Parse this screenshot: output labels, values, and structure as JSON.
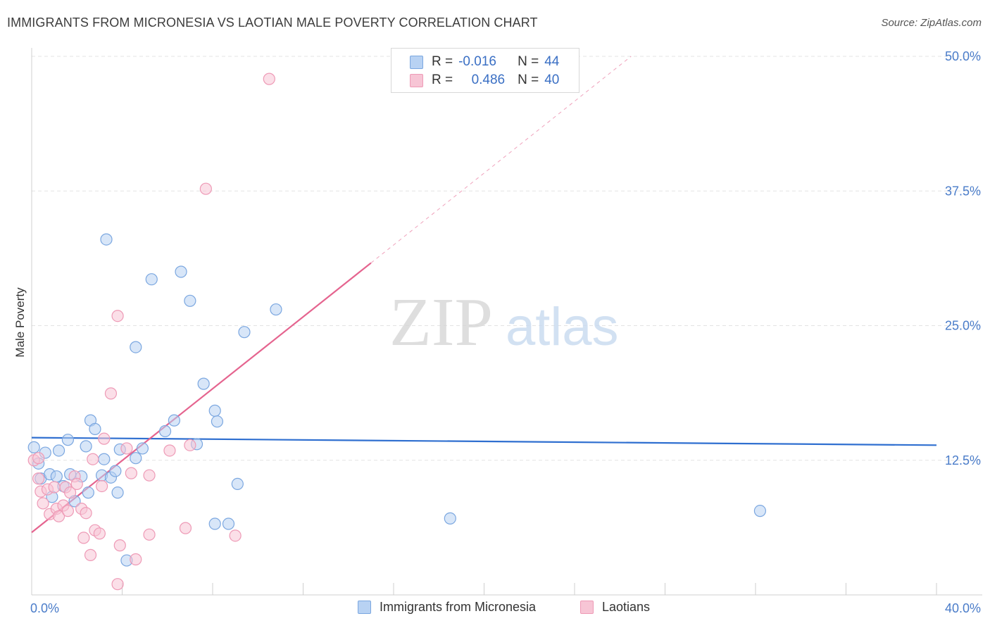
{
  "title": "IMMIGRANTS FROM MICRONESIA VS LAOTIAN MALE POVERTY CORRELATION CHART",
  "source": "Source: ZipAtlas.com",
  "watermark": {
    "zip": "ZIP",
    "atlas": "atlas"
  },
  "legend": {
    "rows": [
      {
        "r_label": "R =",
        "r_value": "-0.016",
        "n_label": "N =",
        "n_value": "44"
      },
      {
        "r_label": "R =",
        "r_value": "0.486",
        "n_label": "N =",
        "n_value": "40"
      }
    ]
  },
  "colors": {
    "blue_fill": "#b8d2f3",
    "blue_stroke": "#7ba7e0",
    "blue_line": "#2f6fd0",
    "pink_fill": "#f7c5d5",
    "pink_stroke": "#ee9ab6",
    "pink_line": "#e5648f",
    "tick_text": "#4a7cc9",
    "grid": "#e3e3e3"
  },
  "chart_data": {
    "type": "scatter",
    "title": "IMMIGRANTS FROM MICRONESIA VS LAOTIAN MALE POVERTY CORRELATION CHART",
    "xlabel": "",
    "ylabel": "Male Poverty",
    "xlim": [
      0,
      40
    ],
    "ylim": [
      0,
      50
    ],
    "x_tick_labels": [
      "0.0%",
      "40.0%"
    ],
    "y_tick_values": [
      12.5,
      25.0,
      37.5,
      50.0
    ],
    "y_tick_labels": [
      "12.5%",
      "25.0%",
      "37.5%",
      "50.0%"
    ],
    "series": [
      {
        "name": "Immigrants from Micronesia",
        "color": "blue",
        "trend": {
          "x0": 0,
          "y0": 14.6,
          "x1": 40,
          "y1": 13.9,
          "solid_to": 40
        },
        "points": [
          [
            0.1,
            13.7
          ],
          [
            0.3,
            12.2
          ],
          [
            0.4,
            10.8
          ],
          [
            0.6,
            13.2
          ],
          [
            0.8,
            11.2
          ],
          [
            0.9,
            9.1
          ],
          [
            1.1,
            11.0
          ],
          [
            1.2,
            13.4
          ],
          [
            1.4,
            10.1
          ],
          [
            1.6,
            14.4
          ],
          [
            1.7,
            11.2
          ],
          [
            1.9,
            8.7
          ],
          [
            2.2,
            11.0
          ],
          [
            2.4,
            13.8
          ],
          [
            2.5,
            9.5
          ],
          [
            2.6,
            16.2
          ],
          [
            2.8,
            15.4
          ],
          [
            3.1,
            11.1
          ],
          [
            3.2,
            12.6
          ],
          [
            3.5,
            10.9
          ],
          [
            3.7,
            11.5
          ],
          [
            3.8,
            9.5
          ],
          [
            3.9,
            13.5
          ],
          [
            4.2,
            3.2
          ],
          [
            4.6,
            12.7
          ],
          [
            4.6,
            23.0
          ],
          [
            4.9,
            13.6
          ],
          [
            5.3,
            29.3
          ],
          [
            5.9,
            15.2
          ],
          [
            6.3,
            16.2
          ],
          [
            6.6,
            30.0
          ],
          [
            7.0,
            27.3
          ],
          [
            7.3,
            14.0
          ],
          [
            7.6,
            19.6
          ],
          [
            8.1,
            17.1
          ],
          [
            8.2,
            16.1
          ],
          [
            8.1,
            6.6
          ],
          [
            8.7,
            6.6
          ],
          [
            9.1,
            10.3
          ],
          [
            9.4,
            24.4
          ],
          [
            10.8,
            26.5
          ],
          [
            3.3,
            33.0
          ],
          [
            18.5,
            7.1
          ],
          [
            32.2,
            7.8
          ]
        ]
      },
      {
        "name": "Laotians",
        "color": "pink",
        "trend": {
          "x0": 0,
          "y0": 5.8,
          "x1": 26.5,
          "y1": 50.0,
          "solid_to": 15.0
        },
        "points": [
          [
            0.1,
            12.5
          ],
          [
            0.3,
            10.8
          ],
          [
            0.4,
            9.6
          ],
          [
            0.5,
            8.5
          ],
          [
            0.7,
            9.8
          ],
          [
            0.8,
            7.5
          ],
          [
            1.0,
            10.0
          ],
          [
            1.1,
            8.0
          ],
          [
            1.2,
            7.3
          ],
          [
            1.4,
            8.3
          ],
          [
            1.5,
            10.0
          ],
          [
            1.6,
            7.8
          ],
          [
            1.7,
            9.5
          ],
          [
            1.9,
            11.0
          ],
          [
            2.0,
            10.3
          ],
          [
            2.2,
            8.0
          ],
          [
            2.3,
            5.3
          ],
          [
            2.4,
            7.6
          ],
          [
            2.6,
            3.7
          ],
          [
            2.7,
            12.6
          ],
          [
            2.8,
            6.0
          ],
          [
            3.0,
            5.7
          ],
          [
            3.1,
            10.1
          ],
          [
            3.2,
            14.5
          ],
          [
            3.5,
            18.7
          ],
          [
            3.8,
            25.9
          ],
          [
            3.9,
            4.6
          ],
          [
            4.2,
            13.6
          ],
          [
            4.4,
            11.3
          ],
          [
            4.6,
            3.3
          ],
          [
            3.8,
            1.0
          ],
          [
            5.2,
            5.6
          ],
          [
            5.2,
            11.1
          ],
          [
            6.1,
            13.4
          ],
          [
            6.8,
            6.2
          ],
          [
            7.0,
            13.9
          ],
          [
            7.7,
            37.7
          ],
          [
            9.0,
            5.5
          ],
          [
            10.5,
            47.9
          ],
          [
            0.3,
            12.7
          ]
        ]
      }
    ]
  },
  "bottom_legend": {
    "items": [
      {
        "label": "Immigrants from Micronesia"
      },
      {
        "label": "Laotians"
      }
    ]
  }
}
